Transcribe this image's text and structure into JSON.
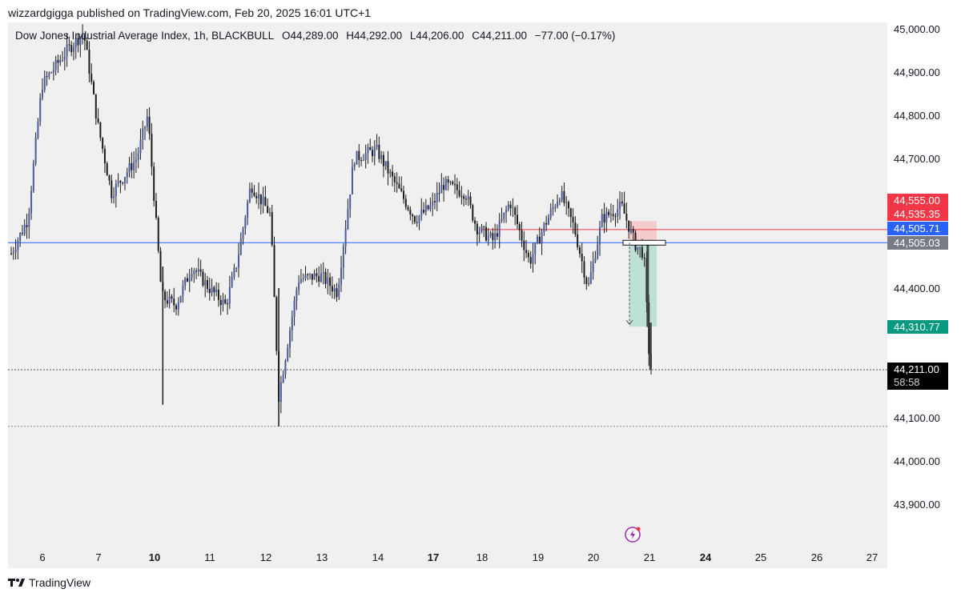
{
  "publisher_line": "wizzardgigga published on TradingView.com, Feb 20, 2025 16:01 UTC+1",
  "legend": {
    "symbol": "Dow Jones Industrial Average Index, 1h, BLACKBULL",
    "open": "O44,289.00",
    "high": "H44,292.00",
    "low": "L44,206.00",
    "close": "C44,211.00",
    "change": "−77.00 (−0.17%)"
  },
  "price_labels": {
    "stop": "44,555.00",
    "alert": "44,535.35",
    "blue_line": "44,505.71",
    "entry": "44,505.03",
    "target": "44,310.77",
    "current": "44,211.00",
    "countdown": "58:58"
  },
  "colors": {
    "background": "#f0f0f0",
    "candle": "#1c1c1c",
    "candle_body_up": "#4a5aa0",
    "stop_zone": "#f5c6c8",
    "target_zone": "#b8dfd3",
    "red": "#f23645",
    "blue": "#2962ff",
    "green": "#089981",
    "gray": "#787b86"
  },
  "footer": {
    "brand": "TradingView",
    "logo_icon": "tradingview-logo-icon"
  },
  "icons": {
    "flash": "lightning-icon"
  },
  "chart_data": {
    "type": "candlestick",
    "title": "Dow Jones Industrial Average Index, 1h, BLACKBULL",
    "ylim": [
      43820,
      45020
    ],
    "y_ticks": [
      {
        "value": 45000,
        "label": "45,000.00"
      },
      {
        "value": 44900,
        "label": "44,900.00"
      },
      {
        "value": 44800,
        "label": "44,800.00"
      },
      {
        "value": 44700,
        "label": "44,700.00"
      },
      {
        "value": 44400,
        "label": "44,400.00"
      },
      {
        "value": 44100,
        "label": "44,100.00"
      },
      {
        "value": 44000,
        "label": "44,000.00"
      },
      {
        "value": 43900,
        "label": "43,900.00"
      }
    ],
    "x_ticks": [
      {
        "label": "6",
        "bold": false
      },
      {
        "label": "7",
        "bold": false
      },
      {
        "label": "10",
        "bold": true
      },
      {
        "label": "11",
        "bold": false
      },
      {
        "label": "12",
        "bold": false
      },
      {
        "label": "13",
        "bold": false
      },
      {
        "label": "14",
        "bold": false
      },
      {
        "label": "17",
        "bold": true
      },
      {
        "label": "18",
        "bold": false
      },
      {
        "label": "19",
        "bold": false
      },
      {
        "label": "20",
        "bold": false
      },
      {
        "label": "21",
        "bold": false
      },
      {
        "label": "24",
        "bold": true
      },
      {
        "label": "25",
        "bold": false
      },
      {
        "label": "26",
        "bold": false
      },
      {
        "label": "27",
        "bold": false
      }
    ],
    "session_days": 11.5,
    "price_path": [
      [
        0.0,
        44480
      ],
      [
        0.3,
        44560
      ],
      [
        0.55,
        44870
      ],
      [
        1.0,
        44950
      ],
      [
        1.3,
        44990
      ],
      [
        1.55,
        44780
      ],
      [
        1.8,
        44620
      ],
      [
        2.25,
        44700
      ],
      [
        2.45,
        44800
      ],
      [
        2.7,
        44380
      ],
      [
        2.95,
        44360
      ],
      [
        3.25,
        44450
      ],
      [
        3.55,
        44400
      ],
      [
        3.85,
        44360
      ],
      [
        4.05,
        44460
      ],
      [
        4.3,
        44640
      ],
      [
        4.65,
        44570
      ],
      [
        4.8,
        44150
      ],
      [
        5.15,
        44420
      ],
      [
        5.55,
        44430
      ],
      [
        5.85,
        44390
      ],
      [
        6.15,
        44700
      ],
      [
        6.55,
        44720
      ],
      [
        6.85,
        44650
      ],
      [
        7.25,
        44560
      ],
      [
        7.55,
        44590
      ],
      [
        7.75,
        44640
      ],
      [
        8.15,
        44620
      ],
      [
        8.35,
        44540
      ],
      [
        8.65,
        44510
      ],
      [
        8.95,
        44600
      ],
      [
        9.3,
        44460
      ],
      [
        9.55,
        44540
      ],
      [
        9.85,
        44620
      ],
      [
        10.1,
        44540
      ],
      [
        10.35,
        44400
      ],
      [
        10.6,
        44560
      ],
      [
        10.95,
        44590
      ],
      [
        11.2,
        44500
      ],
      [
        11.35,
        44480
      ],
      [
        11.45,
        44230
      ],
      [
        11.5,
        44211
      ]
    ],
    "series_low_points": [
      {
        "x": 2.72,
        "value": 44130
      },
      {
        "x": 4.8,
        "value": 44080
      }
    ],
    "horizontal_lines": [
      {
        "name": "entry",
        "value": 44505.03,
        "color": "#2962ff",
        "style": "solid"
      },
      {
        "name": "alert",
        "value": 44535.35,
        "color": "#f23645",
        "style": "solid",
        "start_x": 8.4
      },
      {
        "name": "current",
        "value": 44211.0,
        "color": "#555555",
        "style": "dotted"
      },
      {
        "name": "swing-low",
        "value": 44080,
        "color": "#888888",
        "style": "dotted"
      }
    ],
    "short_position": {
      "entry": 44505.03,
      "stop": 44555.0,
      "target": 44310.77,
      "start_x": 11.15,
      "end_x": 11.65
    }
  }
}
